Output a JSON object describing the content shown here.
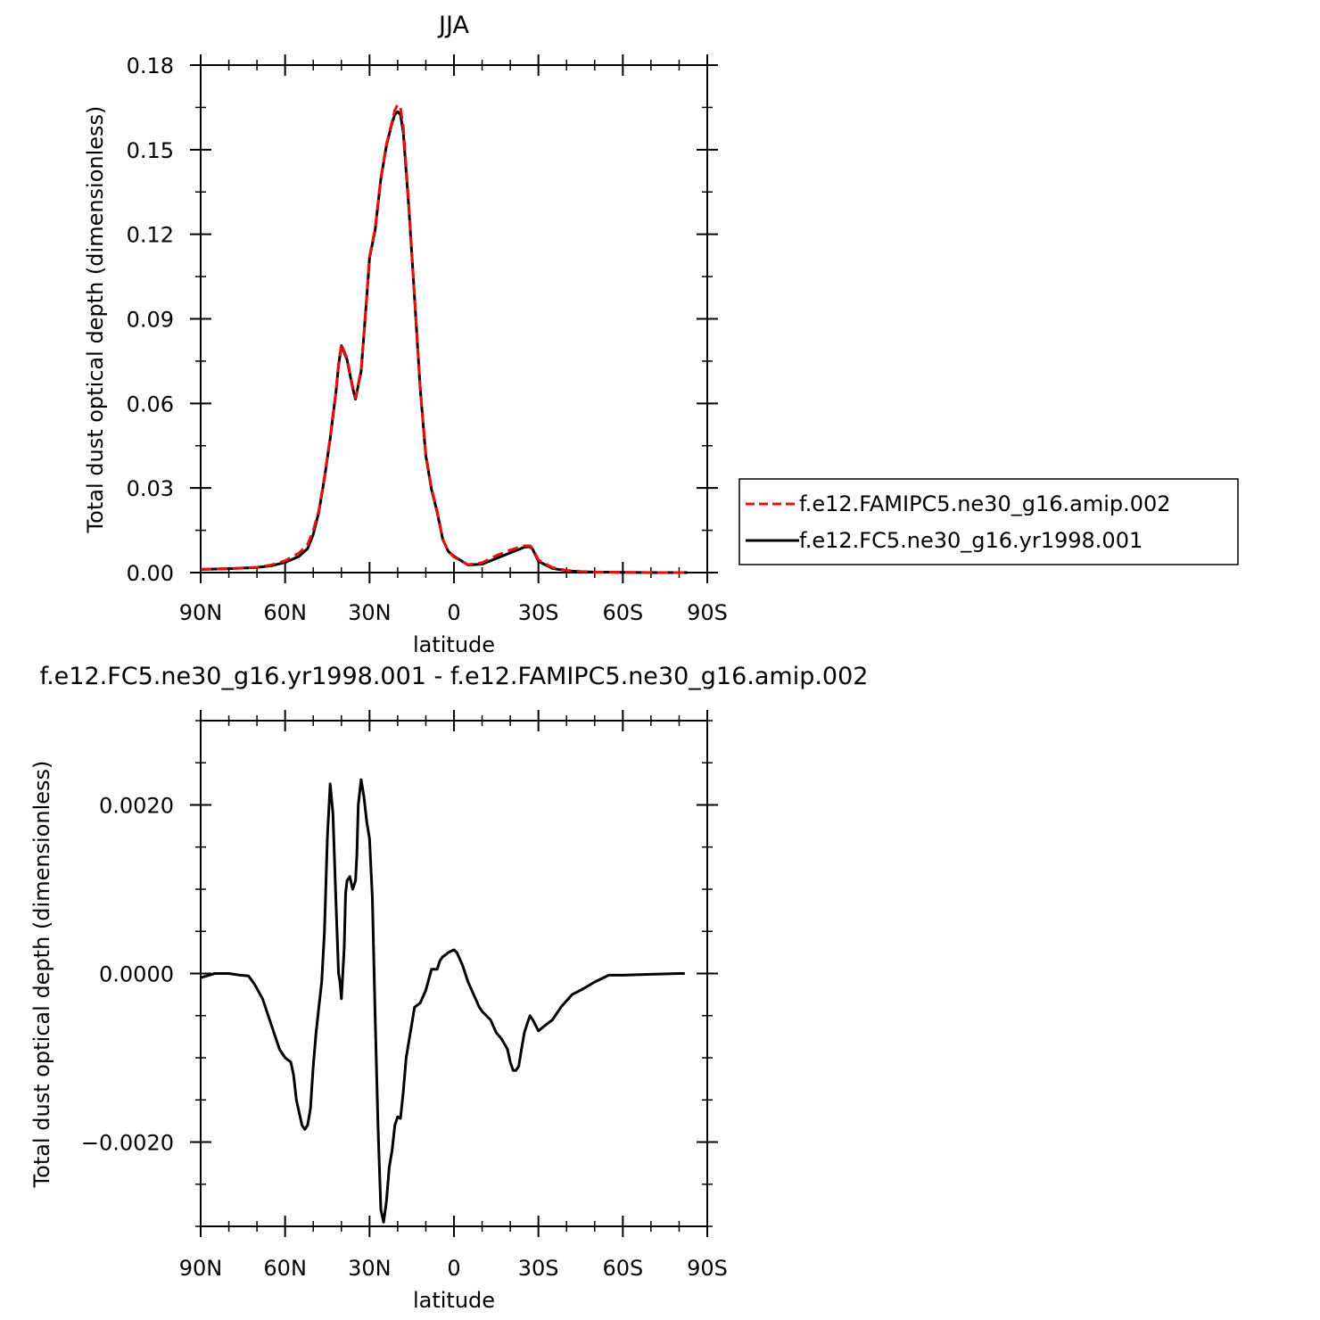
{
  "chart_data": [
    {
      "type": "line",
      "title": "JJA",
      "xlabel": "latitude",
      "ylabel": "Total dust optical depth (dimensionless)",
      "xlim": [
        90,
        -90
      ],
      "ylim": [
        0,
        0.18
      ],
      "xticks": [
        90,
        60,
        30,
        0,
        -30,
        -60,
        -90
      ],
      "xtick_labels": [
        "90N",
        "60N",
        "30N",
        "0",
        "30S",
        "60S",
        "90S"
      ],
      "yticks": [
        0,
        0.03,
        0.06,
        0.09,
        0.12,
        0.15,
        0.18
      ],
      "ytick_labels": [
        "0.00",
        "0.03",
        "0.06",
        "0.09",
        "0.12",
        "0.15",
        "0.18"
      ],
      "grid": false,
      "legend_position": "right",
      "series": [
        {
          "name": "f.e12.FAMIPC5.ne30_g16.amip.002",
          "color": "#e8120c",
          "dash": "dashed",
          "x": [
            90,
            80,
            70,
            65,
            60,
            55,
            52,
            50,
            48,
            46,
            44,
            42,
            41,
            40,
            38,
            36,
            35,
            33,
            31,
            30,
            28,
            26,
            24,
            22,
            21,
            20,
            19,
            18,
            16,
            14,
            12,
            10,
            8,
            6,
            4,
            2,
            0,
            -5,
            -10,
            -15,
            -20,
            -25,
            -27,
            -28,
            -30,
            -35,
            -40,
            -45,
            -50,
            -60,
            -70,
            -80,
            -83
          ],
          "y": [
            0.0012,
            0.0014,
            0.0019,
            0.0027,
            0.0042,
            0.007,
            0.01,
            0.015,
            0.022,
            0.034,
            0.048,
            0.064,
            0.074,
            0.081,
            0.076,
            0.066,
            0.062,
            0.072,
            0.098,
            0.112,
            0.122,
            0.14,
            0.152,
            0.16,
            0.164,
            0.166,
            0.165,
            0.158,
            0.13,
            0.098,
            0.066,
            0.042,
            0.03,
            0.022,
            0.012,
            0.0075,
            0.0055,
            0.0028,
            0.0035,
            0.006,
            0.008,
            0.0095,
            0.0095,
            0.0085,
            0.0045,
            0.0018,
            0.0008,
            0.0004,
            0.0002,
            0.0001,
            0.0,
            0.0,
            0.0
          ]
        },
        {
          "name": "f.e12.FC5.ne30_g16.yr1998.001",
          "color": "#000000",
          "dash": "solid",
          "x": [
            90,
            80,
            70,
            65,
            60,
            55,
            52,
            50,
            48,
            46,
            44,
            42,
            41,
            40,
            38,
            36,
            35,
            33,
            31,
            30,
            28,
            26,
            24,
            22,
            21,
            20,
            19,
            18,
            16,
            14,
            12,
            10,
            8,
            6,
            4,
            2,
            0,
            -5,
            -10,
            -15,
            -20,
            -25,
            -27,
            -28,
            -30,
            -35,
            -40,
            -45,
            -50,
            -60,
            -70,
            -80,
            -83
          ],
          "y": [
            0.0011,
            0.0014,
            0.0018,
            0.0024,
            0.0036,
            0.0058,
            0.0085,
            0.0135,
            0.0215,
            0.0335,
            0.0475,
            0.0635,
            0.0735,
            0.0805,
            0.0755,
            0.0655,
            0.0615,
            0.0715,
            0.0975,
            0.1115,
            0.1215,
            0.1395,
            0.1515,
            0.1595,
            0.1625,
            0.1635,
            0.1625,
            0.156,
            0.129,
            0.0975,
            0.0655,
            0.0415,
            0.0295,
            0.0215,
            0.0118,
            0.0075,
            0.0058,
            0.0027,
            0.003,
            0.005,
            0.007,
            0.009,
            0.0092,
            0.0082,
            0.004,
            0.0015,
            0.0007,
            0.0003,
            0.0002,
            0.0001,
            0.0,
            0.0,
            0.0
          ]
        }
      ],
      "legend": [
        {
          "label": "f.e12.FAMIPC5.ne30_g16.amip.002",
          "color": "#e8120c",
          "dash": "dashed"
        },
        {
          "label": "f.e12.FC5.ne30_g16.yr1998.001",
          "color": "#000000",
          "dash": "solid"
        }
      ]
    },
    {
      "type": "line",
      "title": "f.e12.FC5.ne30_g16.yr1998.001 - f.e12.FAMIPC5.ne30_g16.amip.002",
      "xlabel": "latitude",
      "ylabel": "Total dust optical depth (dimensionless)",
      "xlim": [
        90,
        -90
      ],
      "ylim": [
        -0.003,
        0.003
      ],
      "xticks": [
        90,
        60,
        30,
        0,
        -30,
        -60,
        -90
      ],
      "xtick_labels": [
        "90N",
        "60N",
        "30N",
        "0",
        "30S",
        "60S",
        "90S"
      ],
      "yticks": [
        -0.002,
        0.0,
        0.002
      ],
      "ytick_labels": [
        "−0.0020",
        "0.0000",
        "0.0020"
      ],
      "grid": false,
      "series": [
        {
          "name": "",
          "color": "#000000",
          "dash": "solid",
          "x": [
            90,
            85,
            80,
            76,
            73,
            71,
            68,
            65,
            62,
            60,
            58,
            57,
            56,
            54,
            53,
            52,
            51,
            50,
            49,
            48,
            47,
            46,
            45,
            44,
            43,
            42,
            41,
            40.5,
            40,
            39,
            38.5,
            38,
            37,
            36,
            35,
            34.5,
            34,
            33,
            32,
            31,
            30,
            29,
            28,
            27,
            26,
            25,
            24,
            23,
            22,
            21,
            20,
            19,
            18,
            17,
            16,
            15,
            14,
            12,
            10,
            8,
            6,
            5,
            4,
            3,
            2,
            0,
            -1,
            -3,
            -5,
            -7,
            -9,
            -10,
            -13,
            -15,
            -17,
            -19,
            -20,
            -21,
            -22,
            -23,
            -24,
            -25,
            -26,
            -27,
            -28,
            -30,
            -33,
            -35,
            -38,
            -42,
            -46,
            -50,
            -55,
            -60,
            -70,
            -80,
            -82
          ],
          "y": [
            -5e-05,
            0.0,
            0.0,
            -2e-05,
            -3e-05,
            -0.00012,
            -0.0003,
            -0.0006,
            -0.0009,
            -0.001,
            -0.00105,
            -0.0012,
            -0.0015,
            -0.0018,
            -0.00185,
            -0.0018,
            -0.0016,
            -0.0011,
            -0.0007,
            -0.0004,
            -0.0001,
            0.0005,
            0.0016,
            0.00225,
            0.0019,
            0.0009,
            0.0,
            -0.0001,
            -0.0003,
            0.0003,
            0.00095,
            0.0011,
            0.00115,
            0.001,
            0.0011,
            0.0014,
            0.002,
            0.0023,
            0.0021,
            0.0018,
            0.0016,
            0.0009,
            -0.0005,
            -0.0018,
            -0.0028,
            -0.00295,
            -0.0027,
            -0.0023,
            -0.0021,
            -0.0018,
            -0.0017,
            -0.00172,
            -0.0014,
            -0.001,
            -0.0008,
            -0.0006,
            -0.0004,
            -0.00035,
            -0.0002,
            5e-05,
            5e-05,
            0.00015,
            0.0002,
            0.00022,
            0.00025,
            0.00028,
            0.00025,
            0.0001,
            -0.0001,
            -0.00025,
            -0.0004,
            -0.00045,
            -0.00055,
            -0.0007,
            -0.00078,
            -0.0009,
            -0.00105,
            -0.00115,
            -0.00115,
            -0.0011,
            -0.0009,
            -0.0007,
            -0.0006,
            -0.0005,
            -0.00055,
            -0.00068,
            -0.0006,
            -0.00055,
            -0.0004,
            -0.00025,
            -0.00018,
            -0.0001,
            -2e-05,
            -2e-05,
            -1e-05,
            0.0,
            0.0
          ]
        }
      ]
    }
  ]
}
